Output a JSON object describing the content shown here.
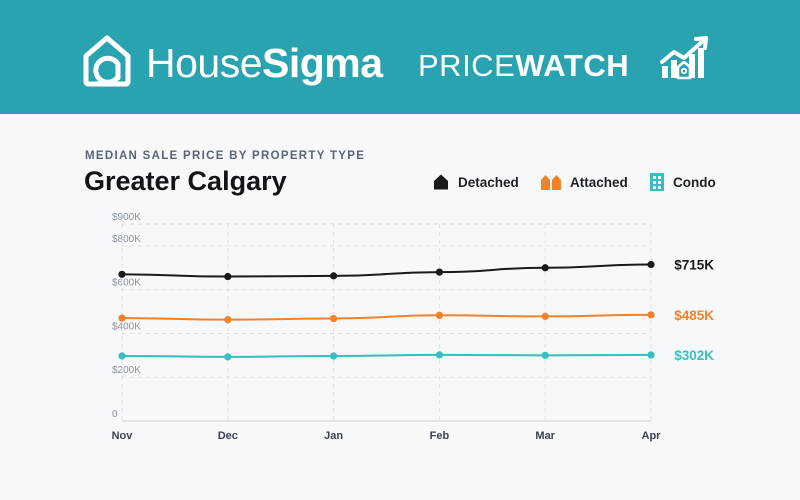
{
  "header": {
    "brand_regular": "House",
    "brand_bold": "Sigma",
    "product_regular": "PRICE",
    "product_bold": "WATCH"
  },
  "colors": {
    "banner": "#2aa3b1",
    "detached": "#1a1a1a",
    "attached": "#f08229",
    "condo": "#35bfc1"
  },
  "chart_data": {
    "type": "line",
    "subtitle": "MEDIAN SALE PRICE BY PROPERTY TYPE",
    "title": "Greater Calgary",
    "categories": [
      "Nov",
      "Dec",
      "Jan",
      "Feb",
      "Mar",
      "Apr"
    ],
    "ylim": [
      0,
      900000
    ],
    "yticks": [
      {
        "value": 0,
        "label": "0"
      },
      {
        "value": 200000,
        "label": "$200K"
      },
      {
        "value": 400000,
        "label": "$400K"
      },
      {
        "value": 600000,
        "label": "$600K"
      },
      {
        "value": 800000,
        "label": "$800K"
      },
      {
        "value": 900000,
        "label": "$900K"
      }
    ],
    "grid": true,
    "legend_position": "top-right",
    "series": [
      {
        "name": "Detached",
        "color": "#1a1a1a",
        "icon": "house-icon",
        "values": [
          670000,
          660000,
          663000,
          680000,
          700000,
          715000
        ],
        "end_label": "$715K"
      },
      {
        "name": "Attached",
        "color": "#f08229",
        "icon": "townhouse-icon",
        "values": [
          470000,
          463000,
          468000,
          483000,
          478000,
          485000
        ],
        "end_label": "$485K"
      },
      {
        "name": "Condo",
        "color": "#35bfc1",
        "icon": "building-icon",
        "values": [
          297000,
          293000,
          297000,
          302000,
          300000,
          302000
        ],
        "end_label": "$302K"
      }
    ]
  }
}
